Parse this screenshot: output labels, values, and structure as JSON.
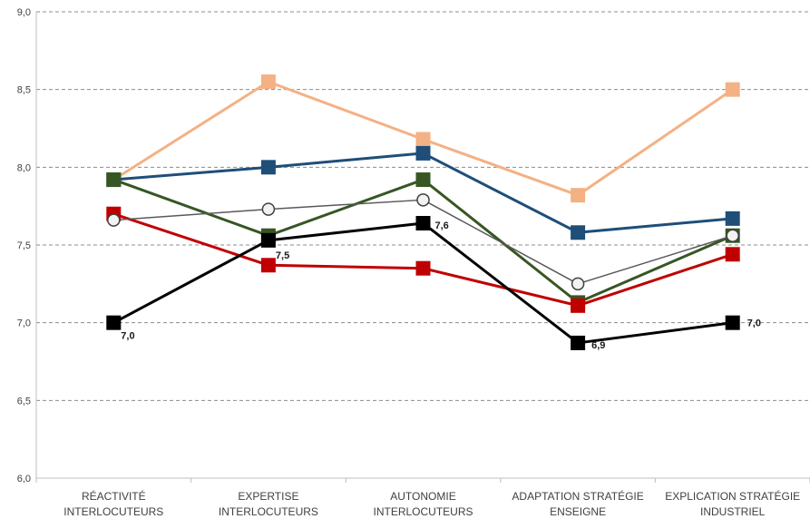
{
  "chart_data": {
    "type": "line",
    "title": "",
    "xlabel": "",
    "ylabel": "",
    "ylim": [
      6.0,
      9.0
    ],
    "yticks": [
      "6,0",
      "6,5",
      "7,0",
      "7,5",
      "8,0",
      "8,5",
      "9,0"
    ],
    "grid": "horizontal dashed",
    "legend": "none",
    "categories": [
      [
        "RÉACTIVITÉ",
        "INTERLOCUTEURS"
      ],
      [
        "EXPERTISE",
        "INTERLOCUTEURS"
      ],
      [
        "AUTONOMIE",
        "INTERLOCUTEURS"
      ],
      [
        "ADAPTATION STRATÉGIE",
        "ENSEIGNE"
      ],
      [
        "EXPLICATION STRATÉGIE",
        "INDUSTRIEL"
      ]
    ],
    "series": [
      {
        "color": "#f4b183",
        "marker": "square",
        "values": [
          7.92,
          8.55,
          8.18,
          7.82,
          8.5
        ]
      },
      {
        "color": "#1f4e79",
        "marker": "square",
        "values": [
          7.92,
          8.0,
          8.09,
          7.58,
          7.67
        ]
      },
      {
        "color": "#375623",
        "marker": "square",
        "values": [
          7.92,
          7.56,
          7.92,
          7.13,
          7.56
        ]
      },
      {
        "color": "#c00000",
        "marker": "square",
        "values": [
          7.7,
          7.37,
          7.35,
          7.11,
          7.44
        ]
      },
      {
        "color": "#595959",
        "marker": "circle",
        "values": [
          7.66,
          7.73,
          7.79,
          7.25,
          7.56
        ]
      },
      {
        "color": "#000000",
        "marker": "square",
        "values": [
          7.0,
          7.53,
          7.64,
          6.87,
          7.0
        ],
        "labels": [
          "7,0",
          "7,5",
          "7,6",
          "6,9",
          "7,0"
        ]
      }
    ]
  }
}
